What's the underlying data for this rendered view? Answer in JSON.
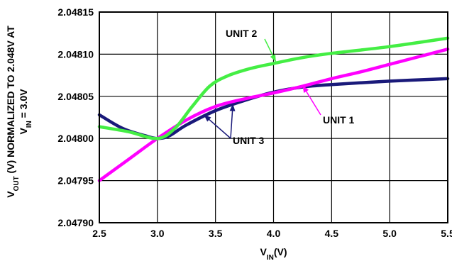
{
  "chart_data": {
    "type": "line",
    "xlabel": "V_IN(V)",
    "ylabel_line1": "V_OUT (V) NORMALIZED TO 2.048V AT",
    "ylabel_line2": "V_IN = 3.0V",
    "xlim": [
      2.5,
      5.5
    ],
    "ylim": [
      2.0479,
      2.04815
    ],
    "x_ticks": [
      2.5,
      3.0,
      3.5,
      4.0,
      4.5,
      5.0,
      5.5
    ],
    "x_tick_labels": [
      "2.5",
      "3.0",
      "3.5",
      "4.0",
      "4.5",
      "5.0",
      "5.5"
    ],
    "y_ticks": [
      2.0479,
      2.04795,
      2.048,
      2.04805,
      2.0481,
      2.04815
    ],
    "y_tick_labels": [
      "2.04790",
      "2.04795",
      "2.04800",
      "2.04805",
      "2.04810",
      "2.04815"
    ],
    "grid": true,
    "series": [
      {
        "name": "UNIT 1",
        "color": "#ff00ff",
        "x": [
          2.5,
          2.75,
          3.0,
          3.25,
          3.5,
          3.75,
          4.0,
          4.25,
          4.5,
          4.75,
          5.0,
          5.25,
          5.5
        ],
        "y": [
          2.04795,
          2.047975,
          2.048,
          2.048022,
          2.048038,
          2.048047,
          2.048054,
          2.048062,
          2.048071,
          2.048079,
          2.048088,
          2.048097,
          2.048106
        ]
      },
      {
        "name": "UNIT 2",
        "color": "#44ee44",
        "x": [
          2.5,
          2.75,
          3.0,
          3.15,
          3.3,
          3.45,
          3.6,
          3.8,
          4.0,
          4.25,
          4.5,
          5.0,
          5.5
        ],
        "y": [
          2.048014,
          2.048008,
          2.048,
          2.048012,
          2.048038,
          2.048062,
          2.048074,
          2.048083,
          2.048089,
          2.048096,
          2.048101,
          2.048109,
          2.048119
        ]
      },
      {
        "name": "UNIT 3",
        "color": "#1a1a7a",
        "x": [
          2.5,
          2.7,
          2.9,
          3.0,
          3.1,
          3.25,
          3.5,
          3.75,
          4.0,
          4.25,
          4.5,
          5.0,
          5.5
        ],
        "y": [
          2.048028,
          2.048012,
          2.048003,
          2.048,
          2.048003,
          2.048016,
          2.048033,
          2.048045,
          2.048055,
          2.048061,
          2.048064,
          2.048068,
          2.048071
        ]
      }
    ],
    "annotations": [
      {
        "text": "UNIT 2",
        "series": "UNIT 2"
      },
      {
        "text": "UNIT 1",
        "series": "UNIT 1"
      },
      {
        "text": "UNIT 3",
        "series": "UNIT 3"
      }
    ]
  }
}
